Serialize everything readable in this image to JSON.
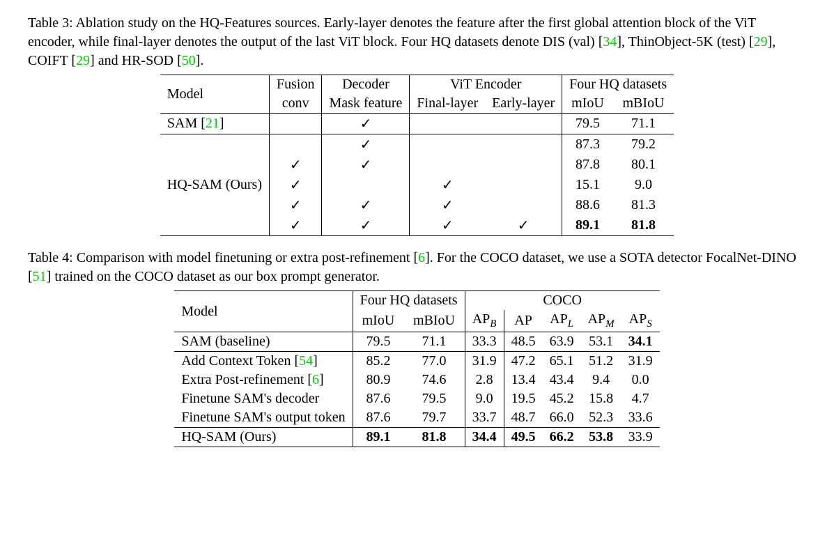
{
  "table3": {
    "caption_prefix": "Table 3: Ablation study on the HQ-Features sources. Early-layer denotes the feature after the first global attention block of the ViT encoder, while final-layer denotes the output of the last ViT block. Four HQ datasets denote DIS (val) [",
    "cite1": "34",
    "caption_mid1": "], ThinObject-5K (test) [",
    "cite2": "29",
    "caption_mid2": "], COIFT [",
    "cite3": "29",
    "caption_mid3": "] and HR-SOD [",
    "cite4": "50",
    "caption_suffix": "].",
    "headers": {
      "model": "Model",
      "fusion": "Fusion",
      "conv": "conv",
      "decoder": "Decoder",
      "maskfeat": "Mask feature",
      "vit": "ViT Encoder",
      "final": "Final-layer",
      "early": "Early-layer",
      "fourhq": "Four HQ datasets",
      "miou": "mIoU",
      "mbiou": "mBIoU"
    },
    "row_sam": {
      "model": "SAM [",
      "cite": "21",
      "model_suf": "]",
      "maskfeat": "✓",
      "miou": "79.5",
      "mbiou": "71.1"
    },
    "row_ours_label": "HQ-SAM (Ours)",
    "rows_ours": [
      {
        "fusion": "",
        "maskfeat": "✓",
        "final": "",
        "early": "",
        "miou": "87.3",
        "mbiou": "79.2",
        "bold": false
      },
      {
        "fusion": "✓",
        "maskfeat": "✓",
        "final": "",
        "early": "",
        "miou": "87.8",
        "mbiou": "80.1",
        "bold": false
      },
      {
        "fusion": "✓",
        "maskfeat": "",
        "final": "✓",
        "early": "",
        "miou": "15.1",
        "mbiou": "9.0",
        "bold": false
      },
      {
        "fusion": "✓",
        "maskfeat": "✓",
        "final": "✓",
        "early": "",
        "miou": "88.6",
        "mbiou": "81.3",
        "bold": false
      },
      {
        "fusion": "✓",
        "maskfeat": "✓",
        "final": "✓",
        "early": "✓",
        "miou": "89.1",
        "mbiou": "81.8",
        "bold": true
      }
    ]
  },
  "table4": {
    "caption_prefix": "Table 4: Comparison with model finetuning or extra post-refinement [",
    "cite1": "6",
    "caption_mid1": "]. For the COCO dataset, we use a SOTA detector FocalNet-DINO [",
    "cite2": "51",
    "caption_suffix": "] trained on the COCO dataset as our box prompt generator.",
    "headers": {
      "model": "Model",
      "fourhq": "Four HQ datasets",
      "miou": "mIoU",
      "mbiou": "mBIoU",
      "coco": "COCO",
      "ap": "AP",
      "ap_b": "B",
      "ap_l": "L",
      "ap_m": "M",
      "ap_s": "S"
    },
    "row_baseline": {
      "model": "SAM (baseline)",
      "miou": "79.5",
      "mbiou": "71.1",
      "apb": "33.3",
      "ap": "48.5",
      "apl": "63.9",
      "apm": "53.1",
      "aps": "34.1",
      "aps_bold": true
    },
    "rows_mid": [
      {
        "model_pre": "Add Context Token [",
        "cite": "54",
        "model_suf": "]",
        "miou": "85.2",
        "mbiou": "77.0",
        "apb": "31.9",
        "ap": "47.2",
        "apl": "65.1",
        "apm": "51.2",
        "aps": "31.9"
      },
      {
        "model_pre": "Extra Post-refinement [",
        "cite": "6",
        "model_suf": "]",
        "miou": "80.9",
        "mbiou": "74.6",
        "apb": "2.8",
        "ap": "13.4",
        "apl": "43.4",
        "apm": "9.4",
        "aps": "0.0"
      },
      {
        "model_pre": "Finetune SAM's decoder",
        "cite": "",
        "model_suf": "",
        "miou": "87.6",
        "mbiou": "79.5",
        "apb": "9.0",
        "ap": "19.5",
        "apl": "45.2",
        "apm": "15.8",
        "aps": "4.7"
      },
      {
        "model_pre": "Finetune SAM's output token",
        "cite": "",
        "model_suf": "",
        "miou": "87.6",
        "mbiou": "79.7",
        "apb": "33.7",
        "ap": "48.7",
        "apl": "66.0",
        "apm": "52.3",
        "aps": "33.6"
      }
    ],
    "row_ours": {
      "model": "HQ-SAM (Ours)",
      "miou": "89.1",
      "mbiou": "81.8",
      "apb": "34.4",
      "ap": "49.5",
      "apl": "66.2",
      "apm": "53.8",
      "aps": "33.9"
    }
  }
}
